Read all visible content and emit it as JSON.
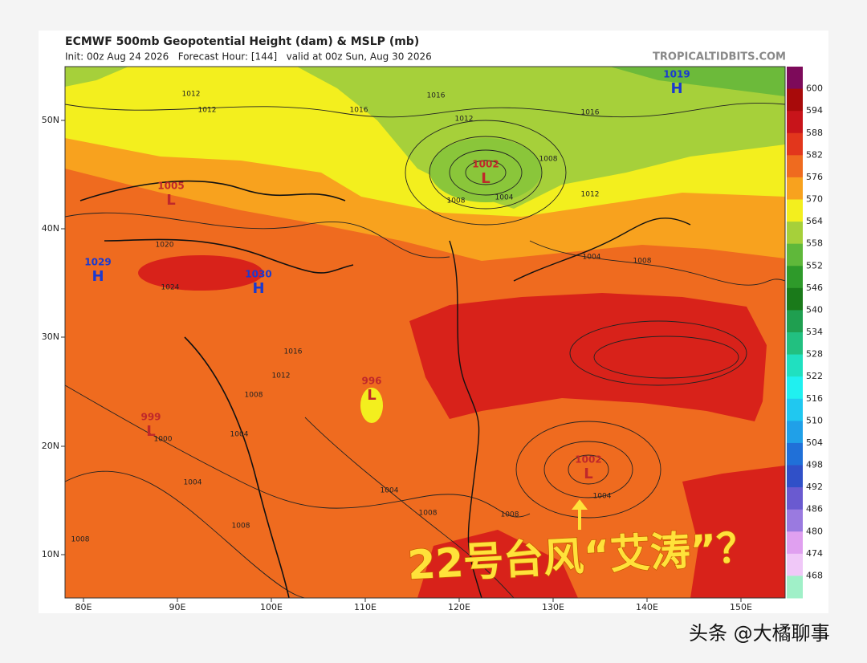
{
  "header": {
    "title": "ECMWF 500mb Geopotential Height (dam) & MSLP (mb)",
    "subtitle": "Init: 00z Aug 24 2026   Forecast Hour: [144]   valid at 00z Sun, Aug 30 2026",
    "source": "TROPICALTIDBITS.COM"
  },
  "map": {
    "lat_labels": [
      "50N",
      "40N",
      "30N",
      "20N",
      "10N"
    ],
    "lon_labels": [
      "80E",
      "90E",
      "100E",
      "110E",
      "120E",
      "130E",
      "140E",
      "150E"
    ],
    "centers": [
      {
        "pressure": "1019",
        "symbol": "H"
      },
      {
        "pressure": "1002",
        "symbol": "L"
      },
      {
        "pressure": "1029",
        "symbol": "H"
      },
      {
        "pressure": "1030",
        "symbol": "H"
      },
      {
        "pressure": "1005",
        "symbol": "L"
      },
      {
        "pressure": "996",
        "symbol": "L"
      },
      {
        "pressure": "999",
        "symbol": "L"
      },
      {
        "pressure": "1002",
        "symbol": "L"
      }
    ],
    "contour_labels": [
      "1012",
      "1012",
      "1016",
      "1016",
      "1012",
      "1008",
      "1004",
      "1008",
      "1016",
      "1012",
      "1004",
      "1008",
      "1020",
      "1024",
      "1016",
      "1012",
      "1008",
      "1004",
      "1000",
      "1004",
      "1008",
      "1004",
      "1008",
      "1008",
      "1004",
      "1008"
    ]
  },
  "colorbar": {
    "labels": [
      "600",
      "594",
      "588",
      "582",
      "576",
      "570",
      "564",
      "558",
      "552",
      "546",
      "540",
      "534",
      "528",
      "522",
      "516",
      "510",
      "504",
      "498",
      "492",
      "486",
      "480",
      "474",
      "468"
    ]
  },
  "overlay": {
    "caption": "22号台风“艾涛”？",
    "watermark": "头条 @大橘聊事"
  }
}
